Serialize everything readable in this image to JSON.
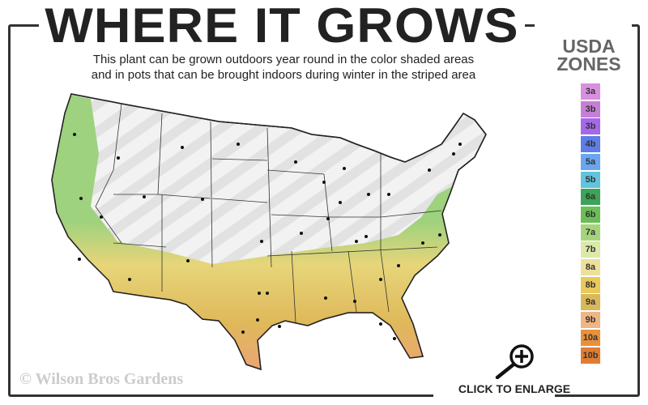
{
  "header": {
    "title": "WHERE IT GROWS",
    "subtitle_line1": "This plant can be grown outdoors year round in the color shaded areas",
    "subtitle_line2": "and in pots that can be brought indoors during winter in the striped area"
  },
  "legend": {
    "title_line1": "USDA",
    "title_line2": "ZONES",
    "zones": [
      {
        "label": "3a",
        "color": "#d98fe0"
      },
      {
        "label": "3b",
        "color": "#c67fd6"
      },
      {
        "label": "3b",
        "color": "#a568ea"
      },
      {
        "label": "4b",
        "color": "#5d7de8"
      },
      {
        "label": "5a",
        "color": "#6aa6ee"
      },
      {
        "label": "5b",
        "color": "#62c4dc"
      },
      {
        "label": "6a",
        "color": "#3ca458"
      },
      {
        "label": "6b",
        "color": "#6cbd58"
      },
      {
        "label": "7a",
        "color": "#a6d47c"
      },
      {
        "label": "7b",
        "color": "#dce9a8"
      },
      {
        "label": "8a",
        "color": "#ede09a"
      },
      {
        "label": "8b",
        "color": "#e9c95c"
      },
      {
        "label": "9a",
        "color": "#d9b85a"
      },
      {
        "label": "9b",
        "color": "#efb584"
      },
      {
        "label": "10a",
        "color": "#e9903a"
      },
      {
        "label": "10b",
        "color": "#e07d32"
      }
    ]
  },
  "footer": {
    "copyright": "© Wilson Bros Gardens",
    "enlarge_label": "CLICK TO ENLARGE",
    "enlarge_icon": "zoom-in-icon"
  }
}
